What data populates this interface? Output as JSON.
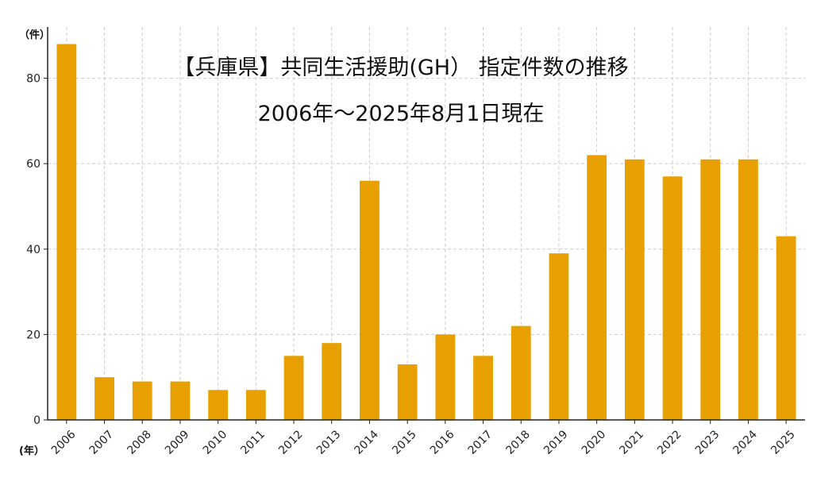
{
  "chart_data": {
    "type": "bar",
    "title": "【兵庫県】共同生活援助(GH） 指定件数の推移",
    "subtitle": "2006年～2025年8月1日現在",
    "ylabel": "（件）",
    "xlabel": "(年）",
    "categories": [
      "2006",
      "2007",
      "2008",
      "2009",
      "2010",
      "2011",
      "2012",
      "2013",
      "2014",
      "2015",
      "2016",
      "2017",
      "2018",
      "2019",
      "2020",
      "2021",
      "2022",
      "2023",
      "2024",
      "2025"
    ],
    "values": [
      88,
      10,
      9,
      9,
      7,
      7,
      15,
      18,
      56,
      13,
      20,
      15,
      22,
      39,
      62,
      61,
      57,
      61,
      61,
      43
    ],
    "ylim": [
      0,
      92
    ],
    "yticks": [
      0,
      20,
      40,
      60,
      80
    ],
    "grid": true,
    "bar_color": "#E8A000"
  }
}
